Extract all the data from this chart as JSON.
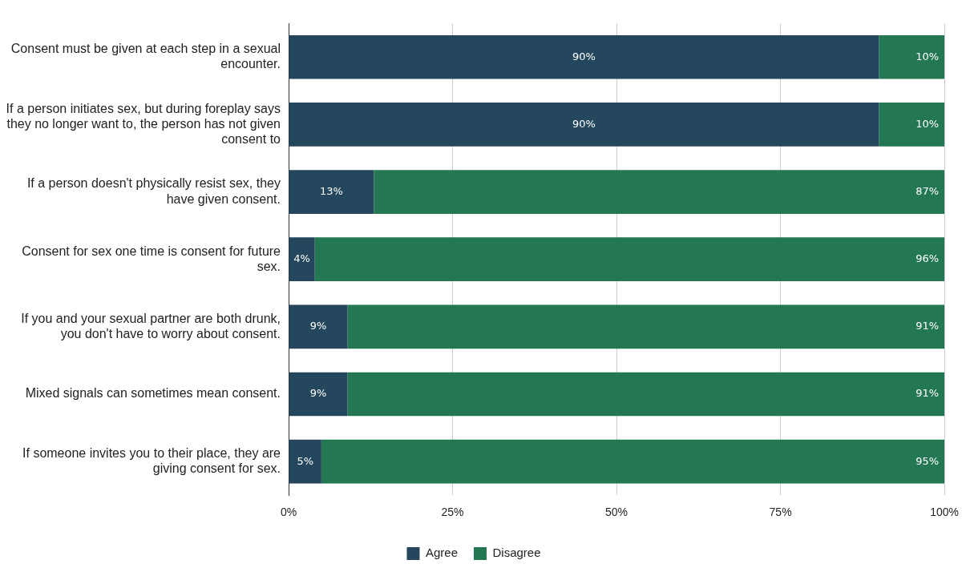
{
  "chart_data": {
    "type": "bar",
    "orientation": "horizontal",
    "stacked": true,
    "categories": [
      "Consent must be given at each step in a sexual encounter.",
      "If a person initiates sex, but during foreplay says they no longer want to, the person has not given consent to",
      "If a person doesn't physically resist sex, they have given consent.",
      "Consent for sex one time is consent for future sex.",
      "If you and your sexual partner are both drunk, you don't have to worry about consent.",
      "Mixed signals can sometimes mean consent.",
      "If someone invites you to their place, they are giving consent for sex."
    ],
    "series": [
      {
        "name": "Agree",
        "color": "#24475e",
        "values": [
          90,
          90,
          13,
          4,
          9,
          9,
          5
        ],
        "value_labels": [
          "90%",
          "90%",
          "13%",
          "4%",
          "9%",
          "9%",
          "5%"
        ]
      },
      {
        "name": "Disagree",
        "color": "#247753",
        "values": [
          10,
          10,
          87,
          96,
          91,
          91,
          95
        ],
        "value_labels": [
          "10%",
          "10%",
          "87%",
          "96%",
          "91%",
          "91%",
          "95%"
        ]
      }
    ],
    "xlim": [
      0,
      100
    ],
    "xticks": [
      {
        "value": 0,
        "label": "0%"
      },
      {
        "value": 25,
        "label": "25%"
      },
      {
        "value": 50,
        "label": "50%"
      },
      {
        "value": 75,
        "label": "75%"
      },
      {
        "value": 100,
        "label": "100%"
      }
    ],
    "grid": "x",
    "legend": "bottom"
  }
}
